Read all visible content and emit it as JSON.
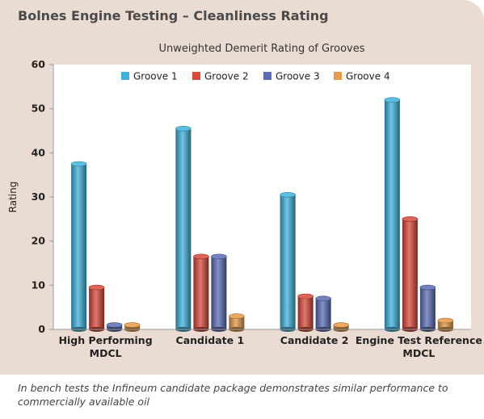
{
  "header": {
    "title": "Bolnes Engine Testing – Cleanliness Rating"
  },
  "caption": "In bench tests the Infineum candidate package demonstrates similar performance to commercially available oil",
  "chart_data": {
    "type": "bar",
    "title": "Unweighted Demerit Rating of Grooves",
    "ylabel": "Rating",
    "xlabel": "",
    "ylim": [
      0,
      60
    ],
    "yticks": [
      0,
      10,
      20,
      30,
      40,
      50,
      60
    ],
    "categories": [
      [
        "High Performing",
        "MDCL"
      ],
      [
        "Candidate 1"
      ],
      [
        "Candidate 2"
      ],
      [
        "Engine Test Reference",
        "MDCL"
      ]
    ],
    "series": [
      {
        "name": "Groove 1",
        "color": "#3fb2dc",
        "values": [
          37.5,
          45.5,
          30.5,
          52
        ]
      },
      {
        "name": "Groove 2",
        "color": "#d9493a",
        "values": [
          9.5,
          16.5,
          7.5,
          25
        ]
      },
      {
        "name": "Groove 3",
        "color": "#5b6db5",
        "values": [
          1,
          16.5,
          7,
          9.5
        ]
      },
      {
        "name": "Groove 4",
        "color": "#e79a48",
        "values": [
          1,
          3,
          1,
          2
        ]
      }
    ],
    "legend_position": "top",
    "grid": false
  }
}
